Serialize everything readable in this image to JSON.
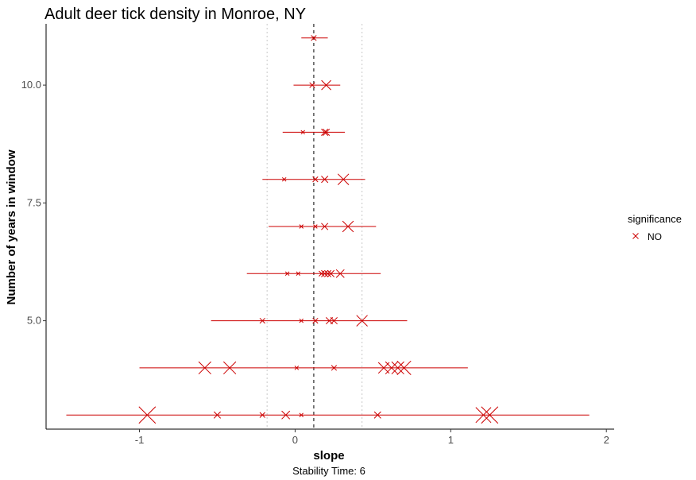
{
  "chart_data": {
    "type": "scatter",
    "title": "Adult deer tick density in Monroe, NY",
    "xlabel": "slope",
    "ylabel": "Number of years in window",
    "caption": "Stability Time: 6",
    "xlim": [
      -1.6,
      2.05
    ],
    "ylim": [
      2.7,
      11.3
    ],
    "x_ticks": [
      -1,
      0,
      1,
      2
    ],
    "y_ticks": [
      5.0,
      7.5,
      10.0
    ],
    "y_tick_labels": [
      "5.0",
      "7.5",
      "10.0"
    ],
    "grid": false,
    "reference_lines": {
      "dashed_x": 0.12,
      "dotted_x": [
        -0.18,
        0.43
      ]
    },
    "legend": {
      "title": "significance",
      "entries": [
        {
          "label": "NO",
          "color": "#cc0000",
          "marker": "x"
        }
      ],
      "position": "right"
    },
    "color": "#cc0000",
    "rows": [
      {
        "y": 11,
        "range": [
          0.04,
          0.21
        ],
        "points": [
          {
            "x": 0.12,
            "s": 0.2
          }
        ]
      },
      {
        "y": 10,
        "range": [
          -0.01,
          0.29
        ],
        "points": [
          {
            "x": 0.11,
            "s": 0.2
          },
          {
            "x": 0.2,
            "s": 0.5
          }
        ]
      },
      {
        "y": 9,
        "range": [
          -0.08,
          0.32
        ],
        "points": [
          {
            "x": 0.05,
            "s": 0.1
          },
          {
            "x": 0.19,
            "s": 0.3
          },
          {
            "x": 0.2,
            "s": 0.3
          }
        ]
      },
      {
        "y": 8,
        "range": [
          -0.21,
          0.45
        ],
        "points": [
          {
            "x": -0.07,
            "s": 0.1
          },
          {
            "x": 0.13,
            "s": 0.2
          },
          {
            "x": 0.19,
            "s": 0.3
          },
          {
            "x": 0.31,
            "s": 0.6
          }
        ]
      },
      {
        "y": 7,
        "range": [
          -0.17,
          0.52
        ],
        "points": [
          {
            "x": 0.04,
            "s": 0.1
          },
          {
            "x": 0.13,
            "s": 0.1
          },
          {
            "x": 0.19,
            "s": 0.3
          },
          {
            "x": 0.34,
            "s": 0.6
          }
        ]
      },
      {
        "y": 6,
        "range": [
          -0.31,
          0.55
        ],
        "points": [
          {
            "x": -0.05,
            "s": 0.1
          },
          {
            "x": 0.02,
            "s": 0.1
          },
          {
            "x": 0.17,
            "s": 0.2
          },
          {
            "x": 0.19,
            "s": 0.3
          },
          {
            "x": 0.21,
            "s": 0.3
          },
          {
            "x": 0.23,
            "s": 0.3
          },
          {
            "x": 0.29,
            "s": 0.4
          }
        ]
      },
      {
        "y": 5,
        "range": [
          -0.54,
          0.72
        ],
        "points": [
          {
            "x": -0.21,
            "s": 0.2
          },
          {
            "x": 0.04,
            "s": 0.1
          },
          {
            "x": 0.13,
            "s": 0.2
          },
          {
            "x": 0.22,
            "s": 0.3
          },
          {
            "x": 0.25,
            "s": 0.3
          },
          {
            "x": 0.43,
            "s": 0.6
          }
        ]
      },
      {
        "y": 4,
        "range": [
          -1.0,
          1.11
        ],
        "points": [
          {
            "x": -0.58,
            "s": 0.7
          },
          {
            "x": -0.42,
            "s": 0.7
          },
          {
            "x": 0.01,
            "s": 0.1
          },
          {
            "x": 0.25,
            "s": 0.2
          },
          {
            "x": 0.57,
            "s": 0.6
          },
          {
            "x": 0.62,
            "s": 0.7
          },
          {
            "x": 0.66,
            "s": 0.7
          },
          {
            "x": 0.7,
            "s": 0.8
          }
        ]
      },
      {
        "y": 3,
        "range": [
          -1.47,
          1.89
        ],
        "points": [
          {
            "x": -0.95,
            "s": 1.0
          },
          {
            "x": -0.5,
            "s": 0.3
          },
          {
            "x": -0.21,
            "s": 0.2
          },
          {
            "x": -0.06,
            "s": 0.4
          },
          {
            "x": 0.04,
            "s": 0.1
          },
          {
            "x": 0.53,
            "s": 0.3
          },
          {
            "x": 1.21,
            "s": 0.9
          },
          {
            "x": 1.25,
            "s": 1.0
          }
        ]
      }
    ]
  }
}
